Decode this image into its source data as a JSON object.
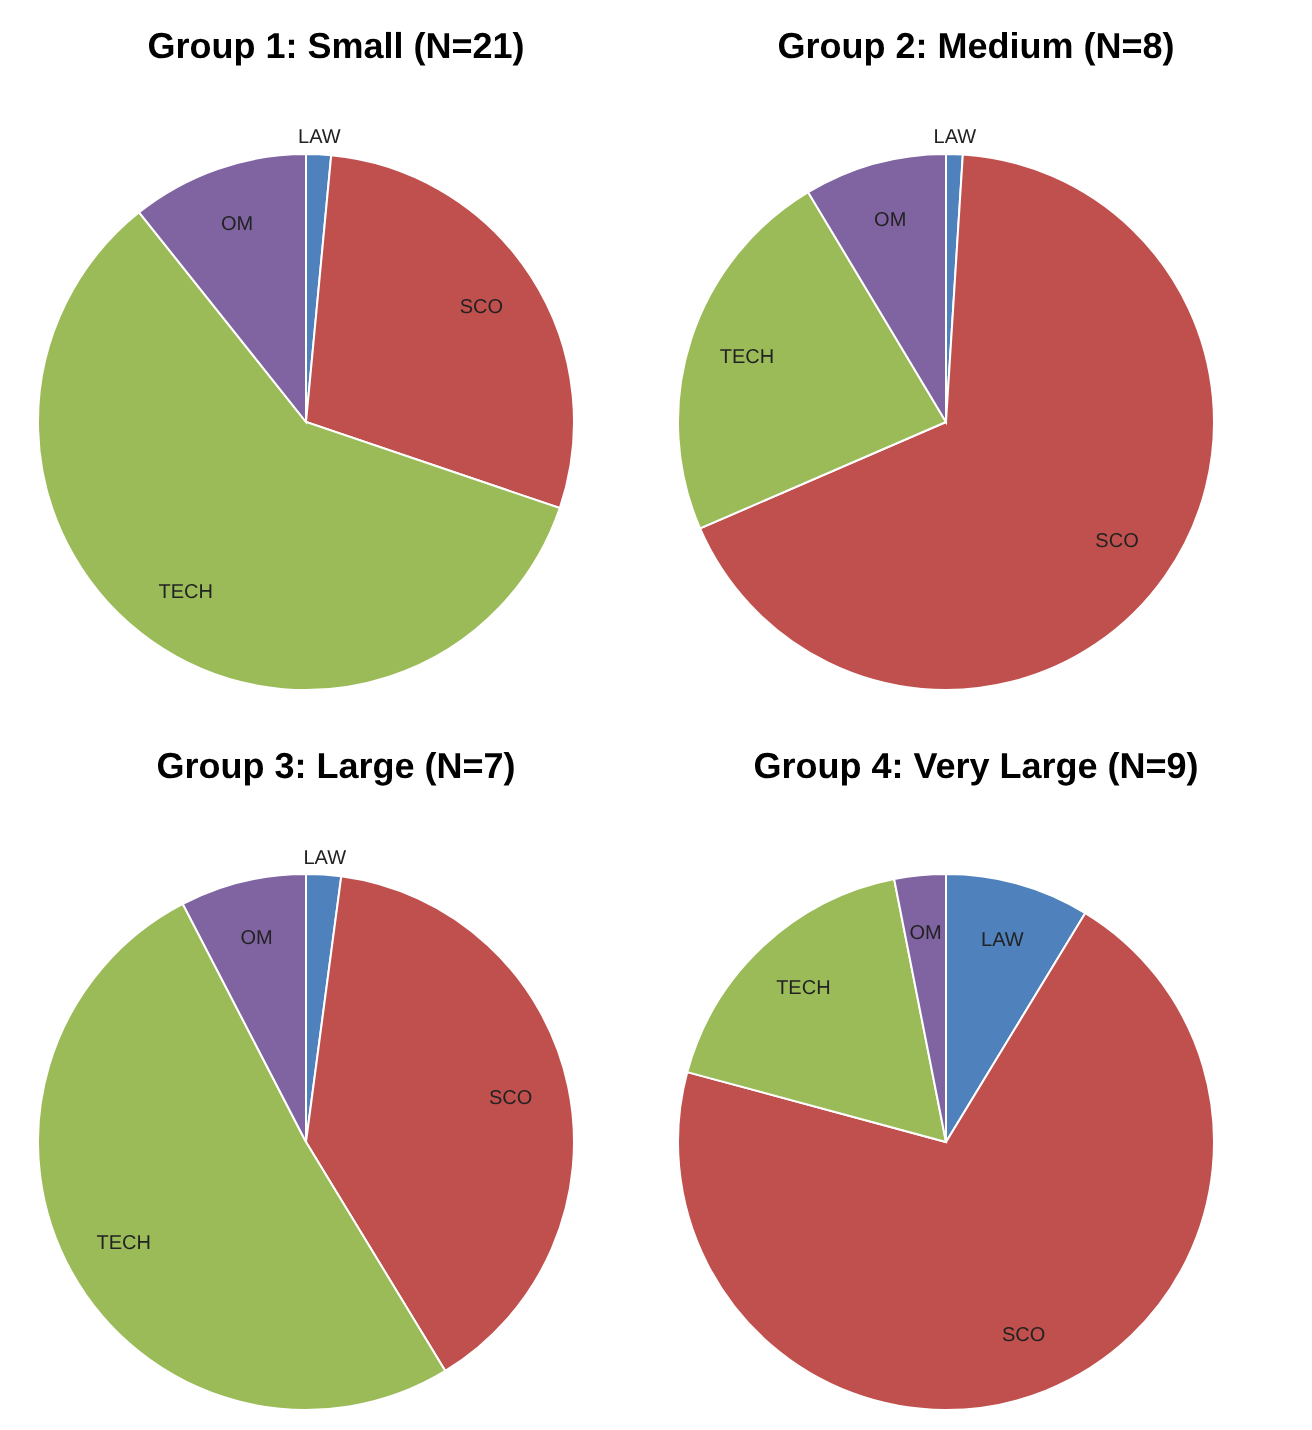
{
  "chart_data": [
    {
      "type": "pie",
      "title": "Group 1: Small (N=21)",
      "categories": [
        "LAW",
        "SCO",
        "TECH",
        "OM"
      ],
      "values": [
        1.5,
        28.7,
        59.1,
        10.7
      ],
      "colors": [
        "#4f81bd",
        "#c0504d",
        "#9bbb59",
        "#8064a2"
      ]
    },
    {
      "type": "pie",
      "title": "Group 2: Medium (N=8)",
      "categories": [
        "LAW",
        "SCO",
        "TECH",
        "OM"
      ],
      "values": [
        1,
        67.5,
        22.9,
        8.6
      ],
      "colors": [
        "#4f81bd",
        "#c0504d",
        "#9bbb59",
        "#8064a2"
      ]
    },
    {
      "type": "pie",
      "title": "Group 3: Large (N=7)",
      "categories": [
        "LAW",
        "SCO",
        "TECH",
        "OM"
      ],
      "values": [
        2.1,
        39.2,
        51.1,
        7.6
      ],
      "colors": [
        "#4f81bd",
        "#c0504d",
        "#9bbb59",
        "#8064a2"
      ]
    },
    {
      "type": "pie",
      "title": "Group 4: Very Large (N=9)",
      "categories": [
        "LAW",
        "SCO",
        "TECH",
        "OM"
      ],
      "values": [
        8.7,
        70.5,
        17.7,
        3.1
      ],
      "colors": [
        "#4f81bd",
        "#c0504d",
        "#9bbb59",
        "#8064a2"
      ]
    }
  ]
}
